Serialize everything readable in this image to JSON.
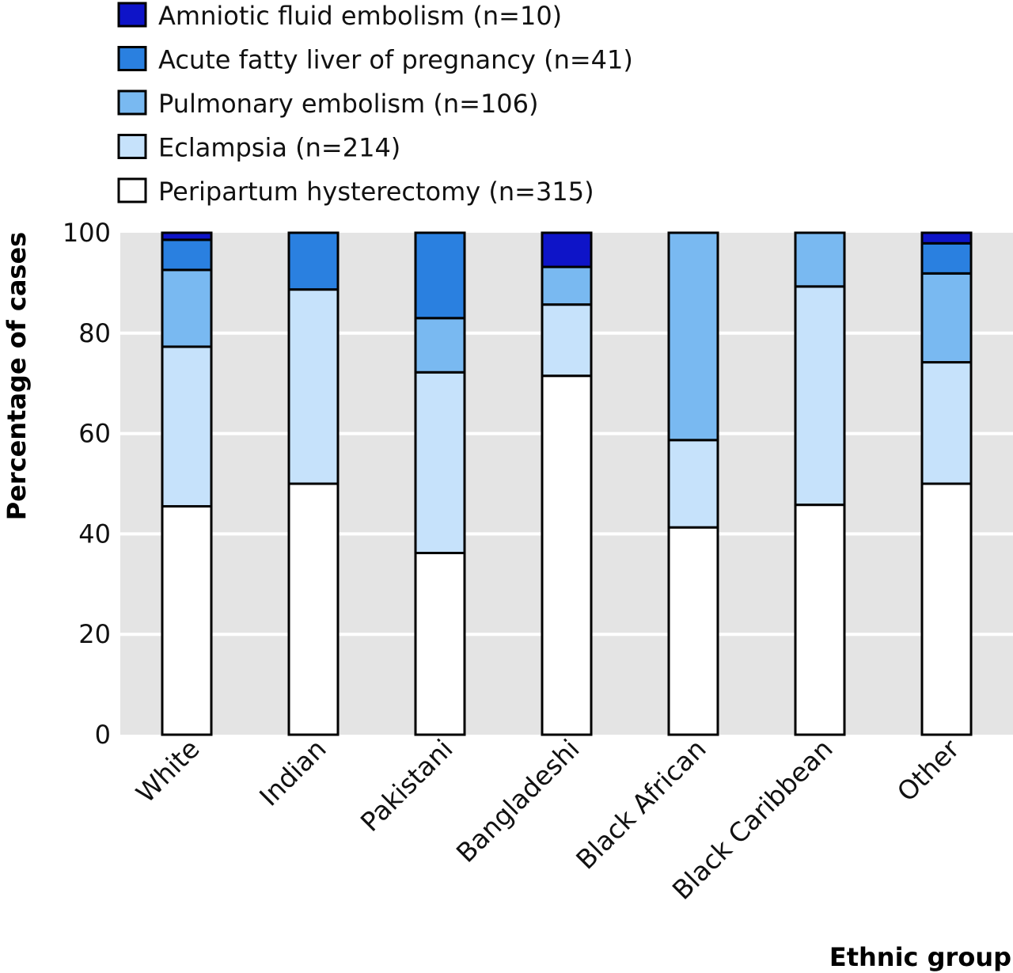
{
  "chart_data": {
    "type": "bar",
    "stacked": true,
    "title": "",
    "xlabel": "Ethnic group",
    "ylabel": "Percentage of cases",
    "ylim": [
      0,
      100
    ],
    "yticks": [
      0,
      20,
      40,
      60,
      80,
      100
    ],
    "grid": true,
    "legend_position": "top-left",
    "categories": [
      "White",
      "Indian",
      "Pakistani",
      "Bangladeshi",
      "Black African",
      "Black Caribbean",
      "Other"
    ],
    "series": [
      {
        "name": "Peripartum hysterectomy (n=315)",
        "color": "#ffffff",
        "values": [
          45.5,
          50.0,
          36.2,
          71.5,
          41.3,
          45.8,
          50.0
        ]
      },
      {
        "name": "Eclampsia (n=214)",
        "color": "#c6e2fb",
        "values": [
          31.8,
          38.7,
          36.0,
          14.2,
          17.4,
          43.5,
          24.2
        ]
      },
      {
        "name": "Pulmonary embolism (n=106)",
        "color": "#79b9f1",
        "values": [
          15.3,
          0,
          10.8,
          7.5,
          41.3,
          10.7,
          17.7
        ]
      },
      {
        "name": "Acute fatty liver of pregnancy (n=41)",
        "color": "#2a80e0",
        "values": [
          6.0,
          11.3,
          17.0,
          0,
          0,
          0,
          6.0
        ]
      },
      {
        "name": "Amniotic fluid embolism (n=10)",
        "color": "#0e14c8",
        "values": [
          1.4,
          0,
          0,
          6.8,
          0,
          0,
          2.1
        ]
      }
    ]
  }
}
